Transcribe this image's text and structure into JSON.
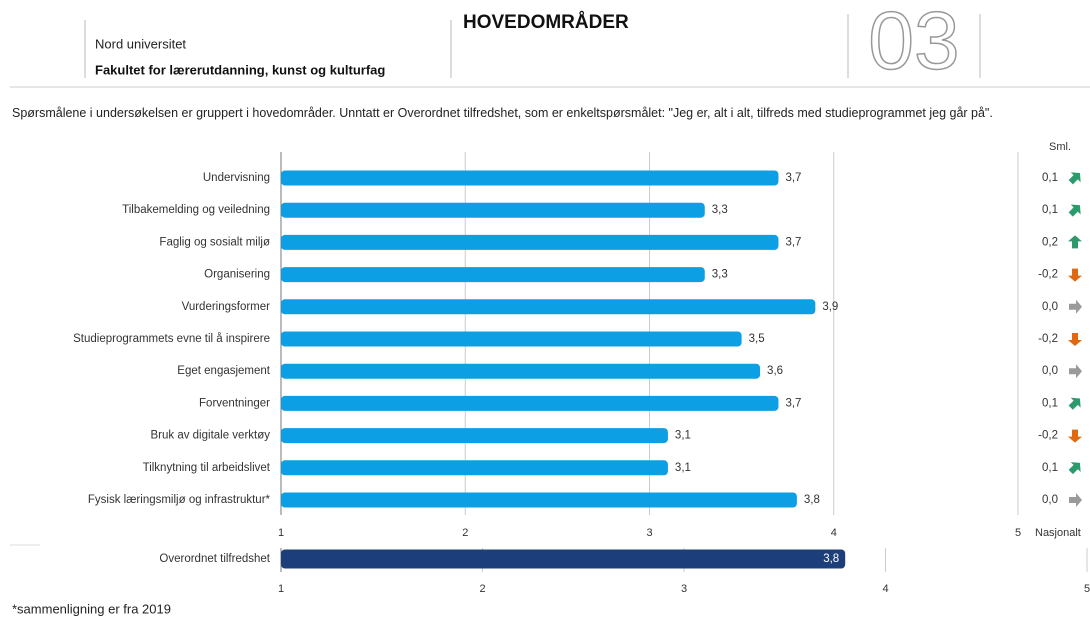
{
  "header": {
    "org": "Nord universitet",
    "faculty": "Fakultet for lærerutdanning, kunst og kulturfag",
    "section": "HOVEDOMRÅDER",
    "number": "03"
  },
  "intro": "Spørsmålene i undersøkelsen er gruppert i hovedområder. Unntatt er Overordnet tilfredshet, som er enkeltspørsmålet: \"Jeg er, alt i alt, tilfreds med studieprogrammet jeg går på\".",
  "chart_data": [
    {
      "type": "barh",
      "categories": [
        "Undervisning",
        "Tilbakemelding og veiledning",
        "Faglig og sosialt miljø",
        "Organisering",
        "Vurderingsformer",
        "Studieprogrammets evne til å inspirere",
        "Eget engasjement",
        "Forventninger",
        "Bruk av digitale verktøy",
        "Tilknytning til arbeidslivet",
        "Fysisk læringsmiljø og infrastruktur*"
      ],
      "values": [
        3.7,
        3.3,
        3.7,
        3.3,
        3.9,
        3.5,
        3.6,
        3.7,
        3.1,
        3.1,
        3.8
      ],
      "value_labels": [
        "3,7",
        "3,3",
        "3,7",
        "3,3",
        "3,9",
        "3,5",
        "3,6",
        "3,7",
        "3,1",
        "3,1",
        "3,8"
      ],
      "color": "#0d9fe3",
      "xlim": [
        1,
        5
      ],
      "xticks": [
        1,
        2,
        3,
        4,
        5
      ],
      "grid": true,
      "comparison": {
        "title": "Sml.",
        "label": "Nasjonalt",
        "values": [
          0.1,
          0.1,
          0.2,
          -0.2,
          0.0,
          -0.2,
          0.0,
          0.1,
          -0.2,
          0.1,
          0.0
        ],
        "value_labels": [
          "0,1",
          "0,1",
          "0,2",
          "-0,2",
          "0,0",
          "-0,2",
          "0,0",
          "0,1",
          "-0,2",
          "0,1",
          "0,0"
        ],
        "colors": {
          "up": "#2b9a6c",
          "down": "#e2680f",
          "flat": "#9a9a9a"
        }
      }
    },
    {
      "type": "barh",
      "categories": [
        "Overordnet tilfredshet"
      ],
      "values": [
        3.8
      ],
      "value_labels": [
        "3,8"
      ],
      "color": "#1c3f7b",
      "xlim": [
        1,
        5
      ],
      "xticks": [
        1,
        2,
        3,
        4,
        5
      ],
      "grid": true
    }
  ],
  "footnote": "*sammenligning er fra 2019"
}
